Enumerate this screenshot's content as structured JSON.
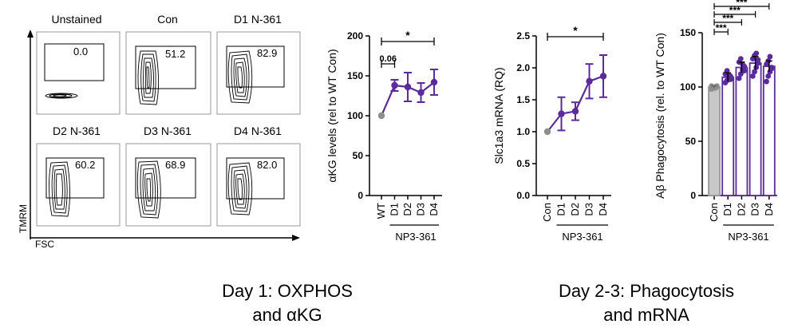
{
  "flow": {
    "ylabel": "TMRM",
    "xlabel": "FSC",
    "panels": [
      {
        "title": "Unstained",
        "value": "0.0"
      },
      {
        "title": "Con",
        "value": "51.2"
      },
      {
        "title": "D1 N-361",
        "value": "82.9"
      },
      {
        "title": "D2 N-361",
        "value": "60.2"
      },
      {
        "title": "D3 N-361",
        "value": "68.9"
      },
      {
        "title": "D4 N-361",
        "value": "82.0"
      }
    ]
  },
  "chart_data": [
    {
      "type": "line",
      "title": "",
      "ylabel": "αKG levels (rel to WT Con)",
      "xlabel": "",
      "categories": [
        "WT",
        "D1",
        "D2",
        "D3",
        "D4"
      ],
      "group_label": "NP3-361",
      "ylim": [
        0,
        200
      ],
      "yticks": [
        "0",
        "50",
        "100",
        "150",
        "200"
      ],
      "series": [
        {
          "values": [
            100,
            138,
            136,
            129,
            142
          ],
          "errors": [
            0,
            7,
            18,
            12,
            16
          ]
        }
      ],
      "annotations": [
        {
          "text": "*",
          "from": "WT",
          "to": "D4"
        },
        {
          "text": "0.06",
          "from": "WT",
          "to": "D1"
        }
      ],
      "colors": {
        "control": "#8e8e8e",
        "treated": "#5b2a9b"
      }
    },
    {
      "type": "line",
      "title": "",
      "ylabel": "Slc1a3 mRNA (RQ)",
      "xlabel": "",
      "categories": [
        "Con",
        "D1",
        "D2",
        "D3",
        "D4"
      ],
      "group_label": "NP3-361",
      "ylim": [
        0,
        2.5
      ],
      "yticks": [
        "0.0",
        "0.5",
        "1.0",
        "1.5",
        "2.0",
        "2.5"
      ],
      "series": [
        {
          "values": [
            1.0,
            1.28,
            1.32,
            1.79,
            1.87
          ],
          "errors": [
            0,
            0.26,
            0.14,
            0.27,
            0.33
          ]
        }
      ],
      "annotations": [
        {
          "text": "*",
          "from": "Con",
          "to": "D4"
        }
      ],
      "colors": {
        "control": "#8e8e8e",
        "treated": "#5b2a9b"
      }
    },
    {
      "type": "bar",
      "title": "",
      "ylabel": "Aβ Phagocytosis (rel. to WT Con)",
      "xlabel": "",
      "categories": [
        "Con",
        "D1",
        "D2",
        "D3",
        "D4"
      ],
      "group_label": "NP3-361",
      "ylim": [
        0,
        150
      ],
      "yticks": [
        "0",
        "50",
        "100",
        "150"
      ],
      "values": [
        100,
        109,
        118,
        122,
        119
      ],
      "errors": [
        1,
        4,
        5,
        6,
        5
      ],
      "points": [
        [
          98,
          99,
          100,
          100,
          101,
          100,
          99,
          101
        ],
        [
          104,
          106,
          108,
          110,
          112,
          115,
          111,
          107
        ],
        [
          108,
          112,
          116,
          119,
          123,
          126,
          121,
          115
        ],
        [
          110,
          114,
          118,
          122,
          126,
          129,
          131,
          125
        ],
        [
          105,
          110,
          114,
          118,
          121,
          124,
          128,
          117
        ]
      ],
      "annotations": [
        {
          "text": "***",
          "from": "Con",
          "to": "D1"
        },
        {
          "text": "***",
          "from": "Con",
          "to": "D2"
        },
        {
          "text": "***",
          "from": "Con",
          "to": "D3"
        },
        {
          "text": "***",
          "from": "Con",
          "to": "D4"
        }
      ],
      "colors": {
        "control": "#c8c8c8",
        "treated": "#5b2a9b"
      }
    }
  ],
  "captions": {
    "left": [
      "Day 1: OXPHOS",
      "and αKG"
    ],
    "right": [
      "Day 2-3: Phagocytosis",
      "and mRNA"
    ]
  }
}
